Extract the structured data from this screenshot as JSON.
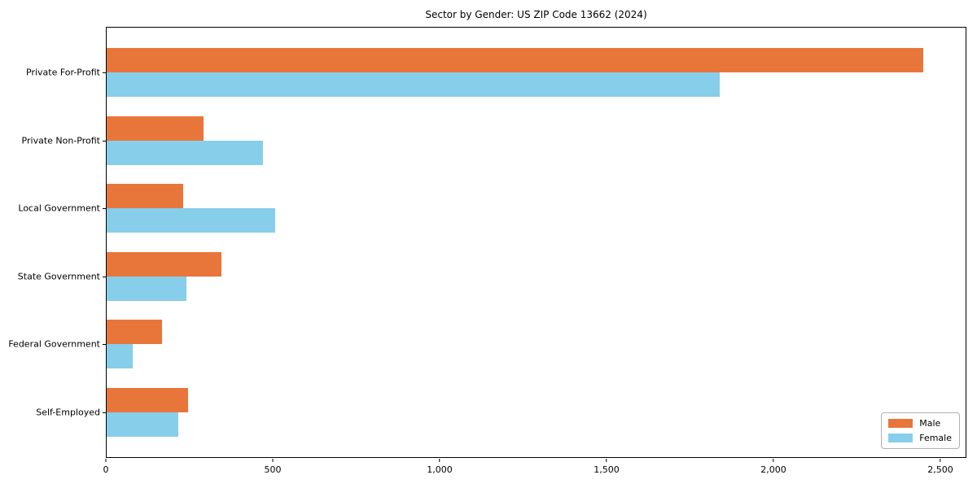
{
  "chart_data": {
    "type": "bar",
    "orientation": "horizontal",
    "title": "Sector by Gender: US ZIP Code 13662 (2024)",
    "categories": [
      "Private For-Profit",
      "Private Non-Profit",
      "Local Government",
      "State Government",
      "Federal Government",
      "Self-Employed"
    ],
    "series": [
      {
        "name": "Male",
        "color": "#E8763B",
        "values": [
          2450,
          290,
          230,
          345,
          165,
          245
        ]
      },
      {
        "name": "Female",
        "color": "#87CEEB",
        "values": [
          1840,
          468,
          505,
          240,
          78,
          215
        ]
      }
    ],
    "xlabel": "",
    "ylabel": "",
    "x_ticks": [
      0,
      500,
      1000,
      1500,
      2000,
      2500
    ],
    "x_tick_labels": [
      "0",
      "500",
      "1,000",
      "1,500",
      "2,000",
      "2,500"
    ],
    "xlim": [
      0,
      2578
    ],
    "grid": false,
    "legend_position": "lower right"
  },
  "colors": {
    "axis": "#000000",
    "background": "#ffffff",
    "legend_border": "#b0b0b0"
  }
}
